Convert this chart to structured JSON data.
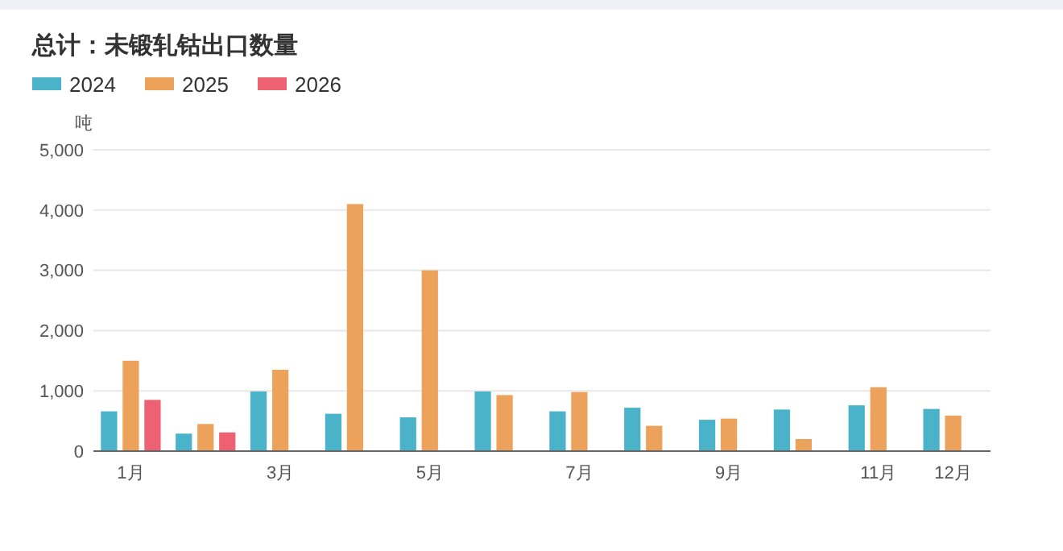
{
  "chart_data": {
    "type": "bar",
    "title": "总计：未锻轧钴出口数量",
    "ylabel": "吨",
    "categories": [
      "1月",
      null,
      "3月",
      null,
      "5月",
      null,
      "7月",
      null,
      "9月",
      null,
      "11月",
      "12月"
    ],
    "series": [
      {
        "name": "2024",
        "color": "#4ab3c9",
        "values": [
          660,
          290,
          990,
          620,
          560,
          990,
          660,
          720,
          520,
          690,
          760,
          700
        ]
      },
      {
        "name": "2025",
        "color": "#eca25b",
        "values": [
          1500,
          450,
          1350,
          4100,
          3000,
          930,
          980,
          420,
          540,
          200,
          1060,
          590
        ]
      },
      {
        "name": "2026",
        "color": "#ee6173",
        "values": [
          850,
          310,
          null,
          null,
          null,
          null,
          null,
          null,
          null,
          null,
          null,
          null
        ]
      }
    ],
    "ylim": [
      0,
      5000
    ],
    "yticks": [
      {
        "value": 0,
        "label": "0"
      },
      {
        "value": 1000,
        "label": "1,000"
      },
      {
        "value": 2000,
        "label": "2,000"
      },
      {
        "value": 3000,
        "label": "3,000"
      },
      {
        "value": 4000,
        "label": "4,000"
      },
      {
        "value": 5000,
        "label": "5,000"
      }
    ],
    "grid": "y",
    "legend": "top left"
  }
}
